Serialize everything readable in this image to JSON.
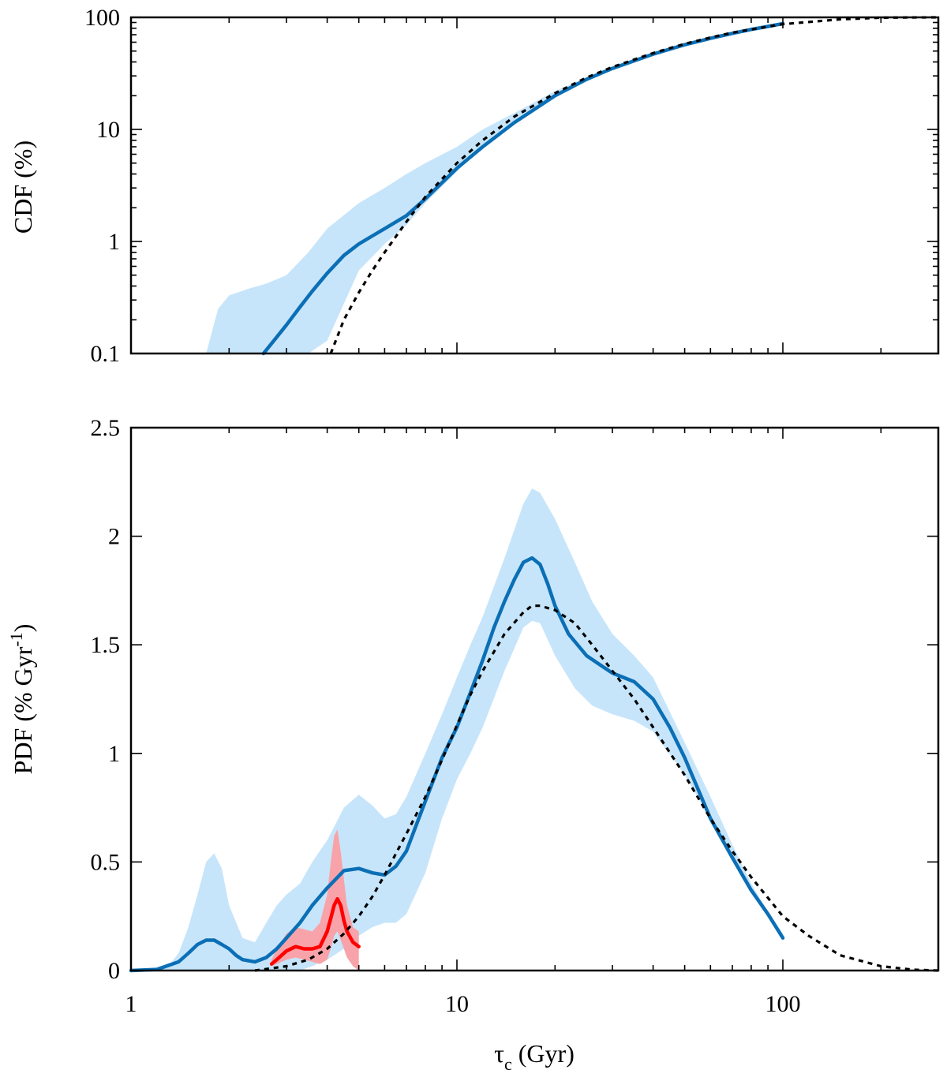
{
  "chart_data": [
    {
      "type": "line",
      "panel": "top",
      "xscale": "log",
      "yscale": "log",
      "xlim": [
        1,
        300
      ],
      "ylim": [
        0.1,
        100
      ],
      "xlabel": "",
      "ylabel": "CDF (%)",
      "yticks": [
        {
          "value": 0.1,
          "label": "0.1"
        },
        {
          "value": 1,
          "label": "1"
        },
        {
          "value": 10,
          "label": "10"
        },
        {
          "value": 100,
          "label": "100"
        }
      ],
      "series": [
        {
          "name": "confidence band",
          "kind": "band",
          "color": "#c7e5fa",
          "x": [
            1.7,
            1.85,
            2.0,
            2.3,
            2.6,
            3.0,
            3.5,
            4.0,
            5.0,
            6.0,
            7.0,
            8.0,
            10,
            12,
            15,
            20,
            25,
            30,
            40,
            50,
            60,
            70,
            80,
            90,
            100
          ],
          "lower": [
            0.1,
            0.1,
            0.1,
            0.1,
            0.1,
            0.1,
            0.1,
            0.13,
            0.55,
            0.95,
            1.4,
            2.2,
            4.2,
            7.0,
            11.5,
            20,
            28,
            35,
            47,
            57,
            65,
            72,
            78,
            83,
            88
          ],
          "upper": [
            0.1,
            0.25,
            0.33,
            0.38,
            0.42,
            0.5,
            0.8,
            1.3,
            2.2,
            3.0,
            4.0,
            5.0,
            7.0,
            10.0,
            14,
            22,
            29,
            36,
            48,
            58,
            66,
            73,
            79,
            84,
            89
          ]
        },
        {
          "name": "CDF",
          "kind": "line",
          "color": "#0b6fb6",
          "x": [
            2.55,
            2.8,
            3.0,
            3.3,
            3.6,
            4.0,
            4.5,
            5.0,
            5.5,
            6.0,
            7.0,
            8.0,
            10,
            12,
            15,
            20,
            25,
            30,
            40,
            50,
            60,
            70,
            80,
            90,
            100
          ],
          "y": [
            0.1,
            0.14,
            0.18,
            0.26,
            0.36,
            0.52,
            0.75,
            0.95,
            1.12,
            1.3,
            1.7,
            2.4,
            4.5,
            7.0,
            11.5,
            20,
            28,
            35,
            47,
            57,
            65,
            72,
            78,
            83,
            88
          ]
        },
        {
          "name": "model",
          "kind": "dashed",
          "color": "#000000",
          "x": [
            4.1,
            4.5,
            5.0,
            5.5,
            6.0,
            7.0,
            8.0,
            10,
            12,
            15,
            20,
            25,
            30,
            40,
            50,
            60,
            70,
            80,
            100,
            150,
            200,
            250,
            300
          ],
          "y": [
            0.1,
            0.2,
            0.35,
            0.55,
            0.8,
            1.5,
            2.5,
            5.0,
            8.0,
            13,
            21,
            29,
            36,
            48,
            58,
            66,
            73,
            78,
            87,
            96,
            99.3,
            99.9,
            100
          ]
        }
      ]
    },
    {
      "type": "line",
      "panel": "bottom",
      "xscale": "log",
      "yscale": "linear",
      "xlim": [
        1,
        300
      ],
      "ylim": [
        0,
        2.5
      ],
      "xlabel": "τc (Gyr)",
      "ylabel": "PDF (% Gyr-1)",
      "xticks": [
        {
          "value": 1,
          "label": "1"
        },
        {
          "value": 10,
          "label": "10"
        },
        {
          "value": 100,
          "label": "100"
        }
      ],
      "yticks": [
        {
          "value": 0,
          "label": "0"
        },
        {
          "value": 0.5,
          "label": "0.5"
        },
        {
          "value": 1,
          "label": "1"
        },
        {
          "value": 1.5,
          "label": "1.5"
        },
        {
          "value": 2,
          "label": "2"
        },
        {
          "value": 2.5,
          "label": "2.5"
        }
      ],
      "series": [
        {
          "name": "confidence band",
          "kind": "band",
          "color": "#c7e5fa",
          "x": [
            1.0,
            1.2,
            1.3,
            1.4,
            1.5,
            1.6,
            1.7,
            1.8,
            1.9,
            2.0,
            2.2,
            2.4,
            2.6,
            2.8,
            3.0,
            3.3,
            3.6,
            4.0,
            4.5,
            5.0,
            5.5,
            6.0,
            6.5,
            7.0,
            8.0,
            9.0,
            10,
            11,
            12,
            14,
            16,
            17,
            18,
            20,
            23,
            26,
            30,
            35,
            40,
            50,
            60,
            70,
            80,
            90,
            100
          ],
          "lower": [
            0,
            0,
            0,
            0,
            0,
            0,
            0,
            0,
            0,
            0,
            0,
            0,
            0,
            0,
            0,
            0,
            0.02,
            0.05,
            0.1,
            0.16,
            0.2,
            0.22,
            0.22,
            0.26,
            0.45,
            0.7,
            0.88,
            1.0,
            1.12,
            1.38,
            1.58,
            1.61,
            1.6,
            1.45,
            1.3,
            1.22,
            1.18,
            1.15,
            1.1,
            0.9,
            0.7,
            0.52,
            0.37,
            0.25,
            0.16
          ],
          "upper": [
            0,
            0,
            0.02,
            0.08,
            0.2,
            0.35,
            0.5,
            0.54,
            0.47,
            0.3,
            0.15,
            0.13,
            0.22,
            0.3,
            0.35,
            0.4,
            0.5,
            0.6,
            0.75,
            0.81,
            0.76,
            0.7,
            0.72,
            0.8,
            1.0,
            1.18,
            1.35,
            1.5,
            1.63,
            1.9,
            2.15,
            2.22,
            2.2,
            2.08,
            1.88,
            1.7,
            1.55,
            1.45,
            1.35,
            1.05,
            0.8,
            0.58,
            0.4,
            0.27,
            0.17
          ]
        },
        {
          "name": "young band",
          "kind": "band",
          "color": "#f8a3a9",
          "x": [
            2.7,
            2.8,
            3.0,
            3.2,
            3.4,
            3.6,
            3.8,
            4.0,
            4.1,
            4.2,
            4.3,
            4.4,
            4.5,
            4.6,
            4.8,
            5.0
          ],
          "lower": [
            0.02,
            0.03,
            0.05,
            0.06,
            0.05,
            0.04,
            0.03,
            0.05,
            0.1,
            0.16,
            0.18,
            0.14,
            0.1,
            0.06,
            0.02,
            0.0
          ],
          "upper": [
            0.05,
            0.1,
            0.17,
            0.2,
            0.19,
            0.18,
            0.22,
            0.35,
            0.5,
            0.62,
            0.65,
            0.55,
            0.42,
            0.3,
            0.2,
            0.18
          ]
        },
        {
          "name": "PDF",
          "kind": "line",
          "color": "#0b6fb6",
          "x": [
            1.0,
            1.2,
            1.4,
            1.5,
            1.6,
            1.7,
            1.8,
            1.9,
            2.0,
            2.1,
            2.2,
            2.4,
            2.6,
            2.8,
            3.0,
            3.3,
            3.6,
            4.0,
            4.5,
            5.0,
            5.5,
            6.0,
            6.5,
            7.0,
            8.0,
            9.0,
            10,
            11,
            12,
            13,
            14,
            15,
            16,
            17,
            18,
            19,
            20,
            22,
            25,
            28,
            30,
            35,
            40,
            45,
            50,
            60,
            70,
            80,
            90,
            100
          ],
          "y": [
            0,
            0.005,
            0.04,
            0.08,
            0.12,
            0.14,
            0.14,
            0.12,
            0.1,
            0.07,
            0.05,
            0.04,
            0.06,
            0.1,
            0.15,
            0.22,
            0.3,
            0.38,
            0.46,
            0.47,
            0.45,
            0.44,
            0.48,
            0.55,
            0.78,
            0.98,
            1.12,
            1.28,
            1.43,
            1.58,
            1.7,
            1.8,
            1.88,
            1.9,
            1.87,
            1.78,
            1.68,
            1.55,
            1.45,
            1.4,
            1.37,
            1.33,
            1.25,
            1.12,
            0.98,
            0.7,
            0.52,
            0.37,
            0.26,
            0.15
          ]
        },
        {
          "name": "young PDF",
          "kind": "line",
          "color": "#ff0000",
          "x": [
            2.7,
            2.8,
            3.0,
            3.2,
            3.4,
            3.6,
            3.8,
            4.0,
            4.1,
            4.2,
            4.3,
            4.4,
            4.5,
            4.6,
            4.8,
            5.0
          ],
          "y": [
            0.03,
            0.05,
            0.09,
            0.11,
            0.1,
            0.1,
            0.11,
            0.18,
            0.24,
            0.3,
            0.33,
            0.3,
            0.23,
            0.18,
            0.13,
            0.11
          ]
        },
        {
          "name": "model",
          "kind": "dashed",
          "color": "#000000",
          "x": [
            2.4,
            2.7,
            3.0,
            3.5,
            4.0,
            4.5,
            5.0,
            5.5,
            6.0,
            7.0,
            8.0,
            9.0,
            10,
            11,
            12,
            14,
            16,
            17,
            18,
            20,
            23,
            26,
            30,
            35,
            40,
            50,
            60,
            70,
            80,
            100,
            120,
            150,
            200,
            250,
            300
          ],
          "y": [
            0.0,
            0.01,
            0.02,
            0.05,
            0.1,
            0.17,
            0.25,
            0.34,
            0.44,
            0.63,
            0.8,
            0.97,
            1.13,
            1.27,
            1.38,
            1.55,
            1.65,
            1.68,
            1.68,
            1.66,
            1.6,
            1.5,
            1.38,
            1.25,
            1.12,
            0.9,
            0.7,
            0.55,
            0.43,
            0.25,
            0.16,
            0.07,
            0.02,
            0.004,
            0.0
          ]
        }
      ]
    }
  ]
}
